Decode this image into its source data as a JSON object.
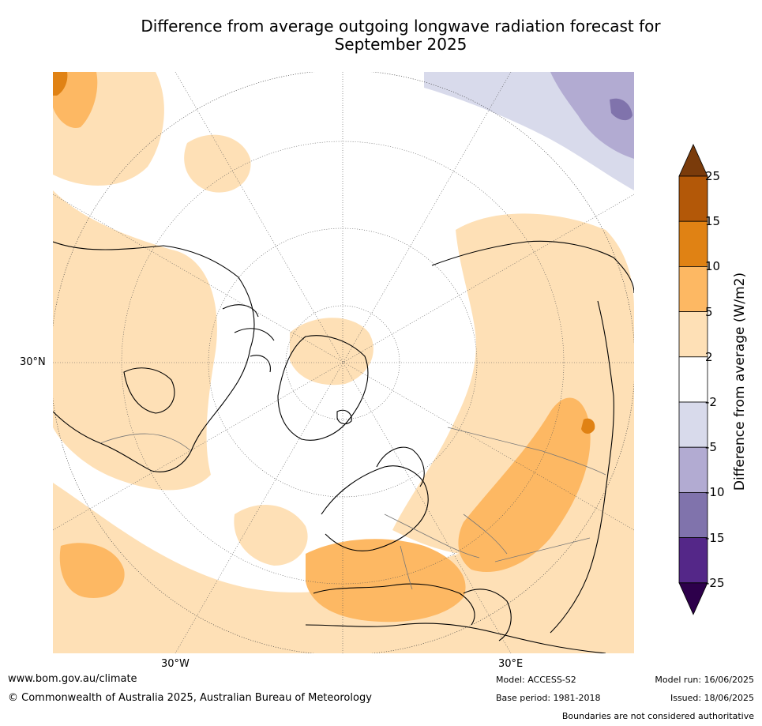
{
  "title_line1": "Difference from average outgoing longwave radiation forecast for",
  "title_line2": "September 2025",
  "axis_labels": {
    "lat_30n": "30°N",
    "lon_30w": "30°W",
    "lon_30e": "30°E"
  },
  "colorbar": {
    "label": "Difference from average (W/m2)",
    "ticks": [
      "25",
      "15",
      "10",
      "5",
      "2",
      "-2",
      "-5",
      "-10",
      "-15",
      "-25"
    ],
    "colors": [
      "#7a3b0b",
      "#b35808",
      "#e08214",
      "#fdb863",
      "#fee0b6",
      "#ffffff",
      "#d8daeb",
      "#b2abd2",
      "#8073ac",
      "#542788",
      "#2d004b"
    ]
  },
  "footer": {
    "website": "www.bom.gov.au/climate",
    "copyright": "© Commonwealth of Australia 2025, Australian Bureau of Meteorology",
    "model": "Model: ACCESS-S2",
    "base_period": "Base period: 1981-2018",
    "model_run": "Model run: 16/06/2025",
    "issued": "Issued: 18/06/2025",
    "disclaimer": "Boundaries are not considered authoritative"
  }
}
